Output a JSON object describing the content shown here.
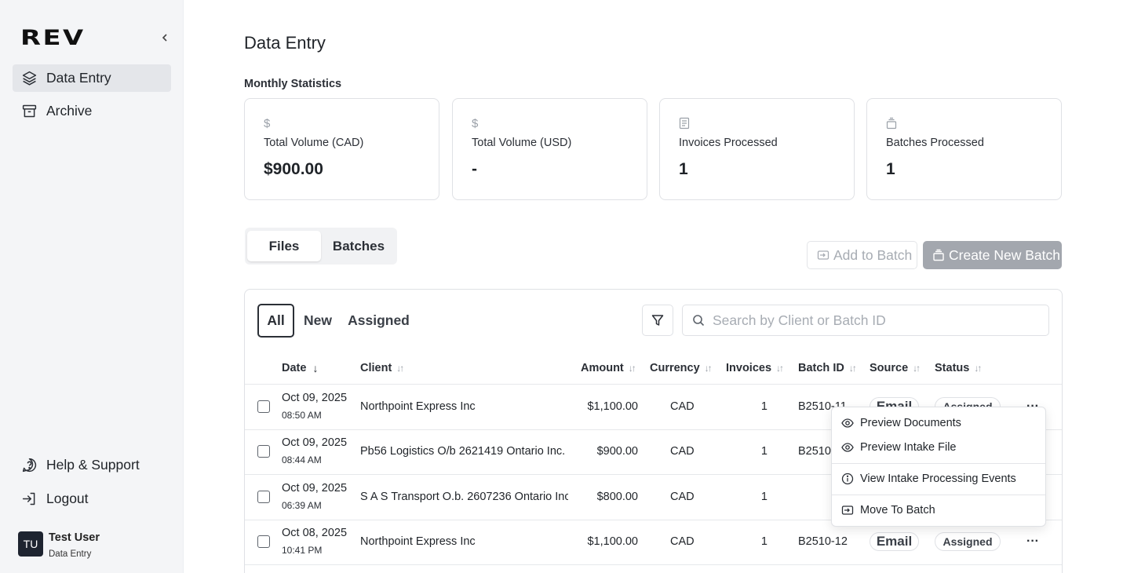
{
  "sidebar": {
    "logo": "REV",
    "items": [
      {
        "label": "Data Entry",
        "icon": "layers-icon",
        "active": true
      },
      {
        "label": "Archive",
        "icon": "archive-icon",
        "active": false
      }
    ],
    "bottom_items": [
      {
        "label": "Help & Support",
        "icon": "help-icon"
      },
      {
        "label": "Logout",
        "icon": "logout-icon"
      }
    ],
    "user": {
      "initials": "TU",
      "name": "Test User",
      "role": "Data Entry"
    }
  },
  "page": {
    "title": "Data Entry",
    "section_label": "Monthly Statistics"
  },
  "stats": [
    {
      "icon": "dollar-icon",
      "label": "Total Volume (CAD)",
      "value": "$900.00"
    },
    {
      "icon": "dollar-icon",
      "label": "Total Volume (USD)",
      "value": "-"
    },
    {
      "icon": "document-icon",
      "label": "Invoices Processed",
      "value": "1"
    },
    {
      "icon": "batch-icon",
      "label": "Batches Processed",
      "value": "1"
    }
  ],
  "view_tabs": [
    {
      "label": "Files",
      "active": true
    },
    {
      "label": "Batches",
      "active": false
    }
  ],
  "actions": {
    "add_to_batch": "Add to Batch",
    "create_new_batch": "Create New Batch"
  },
  "filter_tabs": [
    {
      "label": "All",
      "active": true
    },
    {
      "label": "New",
      "active": false
    },
    {
      "label": "Assigned",
      "active": false
    }
  ],
  "search": {
    "placeholder": "Search by Client or Batch ID",
    "value": ""
  },
  "table": {
    "columns": [
      "Date",
      "Client",
      "Amount",
      "Currency",
      "Invoices",
      "Batch ID",
      "Source",
      "Status"
    ],
    "sort": {
      "column": "Date",
      "direction": "desc"
    },
    "rows": [
      {
        "date": "Oct 09, 2025",
        "time": "08:50 AM",
        "client": "Northpoint Express Inc",
        "amount": "$1,100.00",
        "currency": "CAD",
        "invoices": "1",
        "batch_id": "B2510-11",
        "source": "Email",
        "status": "Assigned"
      },
      {
        "date": "Oct 09, 2025",
        "time": "08:44 AM",
        "client": "Pb56 Logistics O/b 2621419 Ontario Inc.",
        "amount": "$900.00",
        "currency": "CAD",
        "invoices": "1",
        "batch_id": "B2510-",
        "source": "",
        "status": ""
      },
      {
        "date": "Oct 09, 2025",
        "time": "06:39 AM",
        "client": "S A S Transport O.b. 2607236 Ontario Inc.",
        "amount": "$800.00",
        "currency": "CAD",
        "invoices": "1",
        "batch_id": "",
        "source": "",
        "status": ""
      },
      {
        "date": "Oct 08, 2025",
        "time": "10:41 PM",
        "client": "Northpoint Express Inc",
        "amount": "$1,100.00",
        "currency": "CAD",
        "invoices": "1",
        "batch_id": "B2510-12",
        "source": "Email",
        "status": "Assigned"
      }
    ]
  },
  "context_menu": {
    "items": [
      {
        "label": "Preview Documents",
        "icon": "eye-icon"
      },
      {
        "label": "Preview Intake File",
        "icon": "eye-icon"
      },
      {
        "label": "View Intake Processing Events",
        "icon": "info-icon"
      },
      {
        "label": "Move To Batch",
        "icon": "move-to-batch-icon"
      }
    ]
  }
}
